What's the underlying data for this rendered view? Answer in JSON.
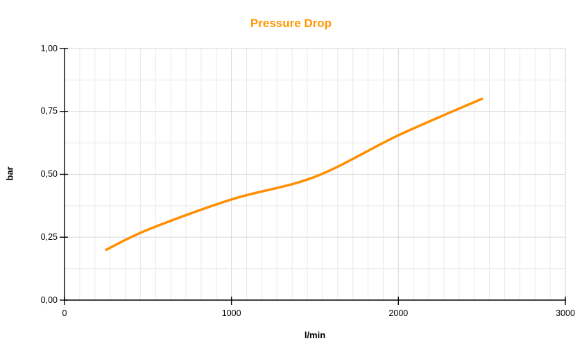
{
  "chart": {
    "title": "Pressure Drop",
    "title_color": "#FF9800",
    "series_color": "#FF8F00",
    "axis_color": "#000000",
    "grid_major_color": "#d6d6d6",
    "grid_minor_color": "#e9e9e9"
  },
  "chart_data": {
    "type": "line",
    "title": "Pressure Drop",
    "xlabel": "l/min",
    "ylabel": "bar",
    "x": [
      250,
      500,
      1000,
      1500,
      2000,
      2500
    ],
    "values": [
      0.2,
      0.28,
      0.4,
      0.49,
      0.655,
      0.8
    ],
    "series": [
      {
        "name": "Pressure Drop",
        "x": [
          250,
          500,
          1000,
          1500,
          2000,
          2500
        ],
        "values": [
          0.2,
          0.28,
          0.4,
          0.49,
          0.655,
          0.8
        ],
        "color": "#FF8F00",
        "smooth": true,
        "line_width": 3.5
      }
    ],
    "xlim": [
      0,
      3000
    ],
    "ylim": [
      0,
      1
    ],
    "x_ticks": [
      0,
      1000,
      2000,
      3000
    ],
    "x_tick_labels": [
      "0",
      "1000",
      "2000",
      "3000"
    ],
    "y_ticks": [
      0,
      0.25,
      0.5,
      0.75,
      1
    ],
    "y_tick_labels": [
      "0,00",
      "0,25",
      "0,50",
      "0,75",
      "1,00"
    ],
    "x_minor_divisions_per_major": 11,
    "y_minor_divisions_per_major": 2,
    "grid": "major+minor",
    "legend": "none",
    "decimal_separator": ","
  }
}
